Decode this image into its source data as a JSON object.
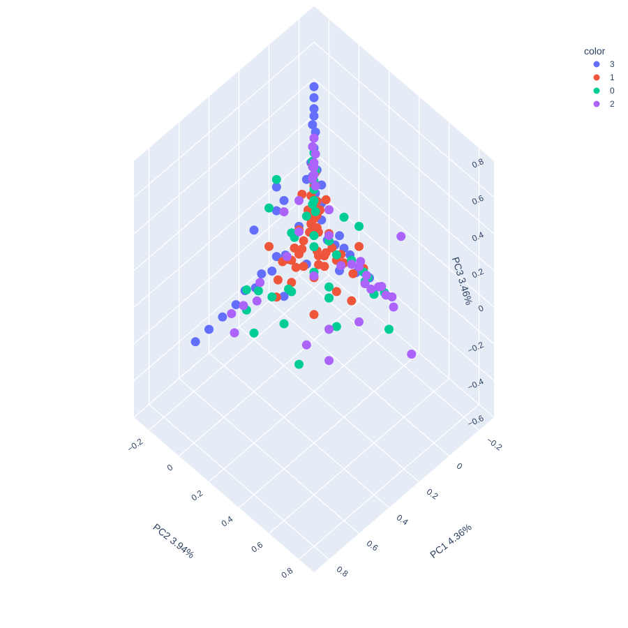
{
  "chart_data": {
    "type": "scatter",
    "subtype": "scatter3d",
    "title": "",
    "legend": {
      "title": "color",
      "placement": "top-right",
      "entries": [
        {
          "name": "3",
          "color": "#636efa"
        },
        {
          "name": "1",
          "color": "#EF553B"
        },
        {
          "name": "0",
          "color": "#00cc96"
        },
        {
          "name": "2",
          "color": "#ab63fa"
        }
      ]
    },
    "axes": {
      "x": {
        "label": "PC1 4.36%",
        "range": [
          -0.3,
          0.9
        ],
        "ticks": [
          "−0.2",
          "0",
          "0.2",
          "0.4",
          "0.6",
          "0.8"
        ],
        "tick_values": [
          -0.2,
          0,
          0.2,
          0.4,
          0.6,
          0.8
        ]
      },
      "y": {
        "label": "PC2 3.94%",
        "range": [
          -0.3,
          0.9
        ],
        "ticks": [
          "−0.2",
          "0",
          "0.2",
          "0.4",
          "0.6",
          "0.8"
        ],
        "tick_values": [
          -0.2,
          0,
          0.2,
          0.4,
          0.6,
          0.8
        ]
      },
      "z": {
        "label": "PC3 3.46%",
        "range": [
          -0.6,
          0.8
        ],
        "ticks": [
          "−0.6",
          "−0.4",
          "−0.2",
          "0",
          "0.2",
          "0.4",
          "0.6",
          "0.8"
        ],
        "tick_values": [
          -0.6,
          -0.4,
          -0.2,
          0,
          0.2,
          0.4,
          0.6,
          0.8
        ]
      }
    },
    "grid": true,
    "background": "#e5ecf6",
    "series": [
      {
        "name": "3",
        "color": "#636efa",
        "points": [
          [
            0,
            0,
            0.78
          ],
          [
            0,
            0,
            0.72
          ],
          [
            0,
            0,
            0.66
          ],
          [
            0,
            0,
            0.62
          ],
          [
            0.01,
            0,
            0.58
          ],
          [
            0,
            0.01,
            0.54
          ],
          [
            0,
            0,
            0.5
          ],
          [
            0.01,
            0.01,
            0.46
          ],
          [
            0,
            0,
            0.42
          ],
          [
            0.02,
            0,
            0.38
          ],
          [
            0,
            0.02,
            0.34
          ],
          [
            0.01,
            0,
            0.3
          ],
          [
            0,
            0,
            0.26
          ],
          [
            0.01,
            0.02,
            0.22
          ],
          [
            0,
            0,
            0.18
          ],
          [
            0.85,
            0.06,
            0.03
          ],
          [
            0.75,
            0.05,
            0.02
          ],
          [
            0.65,
            0.04,
            0.01
          ],
          [
            0.55,
            0.03,
            0.0
          ],
          [
            0.48,
            0.02,
            0.02
          ],
          [
            0.42,
            0.03,
            0.0
          ],
          [
            0.36,
            0.01,
            0.02
          ],
          [
            0.3,
            0.02,
            0.0
          ],
          [
            0.25,
            0.0,
            0.03
          ],
          [
            0.2,
            0.01,
            0.01
          ],
          [
            0.03,
            0.4,
            0.04
          ],
          [
            0.04,
            0.32,
            0.02
          ],
          [
            0.02,
            0.26,
            0.06
          ],
          [
            0.0,
            0.2,
            0.04
          ],
          [
            0.01,
            0.15,
            0.03
          ],
          [
            0.03,
            0.12,
            0.05
          ],
          [
            0.05,
            0.1,
            0.25
          ],
          [
            0.1,
            0.05,
            0.38
          ],
          [
            0.35,
            0.1,
            0.55
          ],
          [
            0.2,
            0.0,
            0.3
          ],
          [
            0.15,
            0.2,
            0.3
          ],
          [
            0.3,
            0.05,
            0.35
          ],
          [
            0.1,
            0.15,
            0.42
          ],
          [
            0.08,
            0.25,
            0.2
          ],
          [
            0.25,
            0.15,
            0.3
          ],
          [
            0.45,
            0.05,
            0.35
          ],
          [
            0.3,
            0.25,
            0.2
          ],
          [
            0.5,
            0.3,
            0.2
          ],
          [
            0.18,
            0.35,
            0.15
          ],
          [
            0.1,
            0.1,
            0.15
          ],
          [
            0.2,
            0.3,
            -0.02
          ]
        ]
      },
      {
        "name": "1",
        "color": "#EF553B",
        "points": [
          [
            0.01,
            0,
            0.36
          ],
          [
            0,
            0.01,
            0.32
          ],
          [
            0.01,
            0.01,
            0.28
          ],
          [
            0,
            0,
            0.24
          ],
          [
            0.02,
            0,
            0.2
          ],
          [
            0,
            0.02,
            0.17
          ],
          [
            0.01,
            0,
            0.14
          ],
          [
            0.02,
            0.02,
            0.11
          ],
          [
            0,
            0,
            0.08
          ],
          [
            0.03,
            0.01,
            0.06
          ],
          [
            0.01,
            0.03,
            0.04
          ],
          [
            0.04,
            0.02,
            0.1
          ],
          [
            0.02,
            0.04,
            0.12
          ],
          [
            0.05,
            0.05,
            0.08
          ],
          [
            0.06,
            0.03,
            0.05
          ],
          [
            0.03,
            0.06,
            0.05
          ],
          [
            0.05,
            0.01,
            0.15
          ],
          [
            0.01,
            0.05,
            0.15
          ],
          [
            0.07,
            0.07,
            0.09
          ],
          [
            0.04,
            0.04,
            0.18
          ],
          [
            0.15,
            0.02,
            0.02
          ],
          [
            0.2,
            0.03,
            0.0
          ],
          [
            0.25,
            0.04,
            0.03
          ],
          [
            0.3,
            0.06,
            -0.02
          ],
          [
            0.12,
            0.05,
            0.06
          ],
          [
            0.18,
            0.08,
            0.05
          ],
          [
            0.22,
            0.1,
            0.02
          ],
          [
            0.1,
            0.12,
            0.04
          ],
          [
            0.08,
            0.15,
            0.02
          ],
          [
            0.02,
            0.2,
            0.02
          ],
          [
            0.05,
            0.25,
            0.03
          ],
          [
            0.04,
            0.3,
            0.0
          ],
          [
            0.02,
            0.35,
            0.05
          ],
          [
            0.06,
            0.18,
            0.07
          ],
          [
            0.12,
            0.15,
            0.0
          ],
          [
            0.0,
            0.08,
            0.22
          ],
          [
            0.08,
            0.0,
            0.25
          ],
          [
            0.1,
            0.1,
            0.2
          ],
          [
            0.15,
            0.05,
            0.14
          ],
          [
            0.05,
            0.15,
            0.12
          ],
          [
            0.2,
            0.12,
            0.12
          ],
          [
            0.12,
            0.2,
            0.1
          ],
          [
            0.25,
            0.1,
            0.08
          ],
          [
            0.1,
            0.25,
            0.08
          ],
          [
            0.3,
            0.0,
            0.12
          ],
          [
            0.0,
            0.3,
            0.12
          ],
          [
            0.35,
            0.2,
            0.1
          ],
          [
            0.2,
            0.35,
            0.05
          ],
          [
            0.05,
            0.08,
            -0.05
          ],
          [
            0.15,
            0.15,
            -0.05
          ],
          [
            0.3,
            0.3,
            -0.04
          ],
          [
            0.12,
            0.05,
            -0.08
          ],
          [
            0.05,
            0.12,
            -0.08
          ],
          [
            0.4,
            0.15,
            0.02
          ],
          [
            0.15,
            0.4,
            0.0
          ]
        ]
      },
      {
        "name": "0",
        "color": "#00cc96",
        "points": [
          [
            0,
            0,
            0.42
          ],
          [
            0.01,
            0,
            0.38
          ],
          [
            0,
            0.01,
            0.33
          ],
          [
            0.01,
            0.01,
            0.28
          ],
          [
            0,
            0,
            0.22
          ],
          [
            0.02,
            0.01,
            0.16
          ],
          [
            0.01,
            0.02,
            0.12
          ],
          [
            0.55,
            0.1,
            0.02
          ],
          [
            0.45,
            0.08,
            0.04
          ],
          [
            0.5,
            0.05,
            0.06
          ],
          [
            0.4,
            0.12,
            0.0
          ],
          [
            0.35,
            0.18,
            0.05
          ],
          [
            0.6,
            0.2,
            0.0
          ],
          [
            0.45,
            0.25,
            -0.02
          ],
          [
            0.05,
            0.45,
            0.0
          ],
          [
            0.03,
            0.5,
            0.03
          ],
          [
            0.04,
            0.4,
            0.05
          ],
          [
            0.02,
            0.35,
            0.03
          ],
          [
            0.08,
            0.42,
            0.07
          ],
          [
            0.1,
            0.6,
            -0.05
          ],
          [
            0.05,
            0.3,
            0.08
          ],
          [
            0.25,
            0.0,
            0.45
          ],
          [
            0.35,
            0.05,
            0.4
          ],
          [
            0.15,
            0.1,
            0.25
          ],
          [
            0.1,
            0.3,
            0.35
          ],
          [
            0.05,
            0.35,
            0.3
          ],
          [
            0.2,
            0.2,
            0.25
          ],
          [
            0.3,
            0.15,
            0.3
          ],
          [
            0.15,
            0.3,
            0.18
          ],
          [
            0.1,
            0.1,
            0.3
          ],
          [
            0.4,
            0.25,
            0.12
          ],
          [
            0.25,
            0.35,
            0.05
          ],
          [
            0.3,
            0.4,
            -0.05
          ],
          [
            0.2,
            0.2,
            0.05
          ],
          [
            0.1,
            0.2,
            0.15
          ],
          [
            0.18,
            0.05,
            0.12
          ],
          [
            0.08,
            0.08,
            0.02
          ],
          [
            0.15,
            0.25,
            -0.03
          ],
          [
            0.5,
            0.4,
            -0.1
          ],
          [
            0.3,
            0.45,
            0.0
          ]
        ]
      },
      {
        "name": "2",
        "color": "#ab63fa",
        "points": [
          [
            0,
            0,
            0.5
          ],
          [
            0.01,
            0,
            0.46
          ],
          [
            0,
            0.01,
            0.42
          ],
          [
            0.01,
            0.01,
            0.38
          ],
          [
            0,
            0,
            0.34
          ],
          [
            0.02,
            0.01,
            0.3
          ],
          [
            0.01,
            0.02,
            0.26
          ],
          [
            0,
            0,
            0.3
          ],
          [
            0.01,
            0,
            0.35
          ],
          [
            0.02,
            0.45,
            0.02
          ],
          [
            0.03,
            0.38,
            0.04
          ],
          [
            0.01,
            0.32,
            0.06
          ],
          [
            0.04,
            0.42,
            0.0
          ],
          [
            0.02,
            0.5,
            0.01
          ],
          [
            0.03,
            0.28,
            0.03
          ],
          [
            0.02,
            0.55,
            -0.02
          ],
          [
            0.05,
            0.35,
            0.08
          ],
          [
            0.03,
            0.48,
            0.05
          ],
          [
            0.06,
            0.4,
            0.03
          ],
          [
            0.0,
            0.52,
            0.0
          ],
          [
            0.6,
            0.05,
            0.0
          ],
          [
            0.55,
            0.08,
            0.03
          ],
          [
            0.48,
            0.1,
            0.02
          ],
          [
            0.65,
            0.12,
            -0.02
          ],
          [
            0.42,
            0.06,
            0.05
          ],
          [
            0.02,
            0.6,
            0.4
          ],
          [
            0.35,
            0.15,
            0.45
          ],
          [
            0.15,
            0.05,
            0.3
          ],
          [
            0.05,
            0.15,
            0.25
          ],
          [
            0.2,
            0.1,
            0.2
          ],
          [
            0.1,
            0.2,
            0.18
          ],
          [
            0.25,
            0.25,
            0.1
          ],
          [
            0.3,
            0.12,
            0.15
          ],
          [
            0.12,
            0.3,
            0.1
          ],
          [
            0.4,
            0.35,
            -0.1
          ],
          [
            0.35,
            0.45,
            -0.15
          ],
          [
            0.3,
            0.4,
            -0.05
          ],
          [
            0.05,
            0.7,
            -0.15
          ],
          [
            0.15,
            0.45,
            -0.08
          ]
        ]
      }
    ]
  }
}
